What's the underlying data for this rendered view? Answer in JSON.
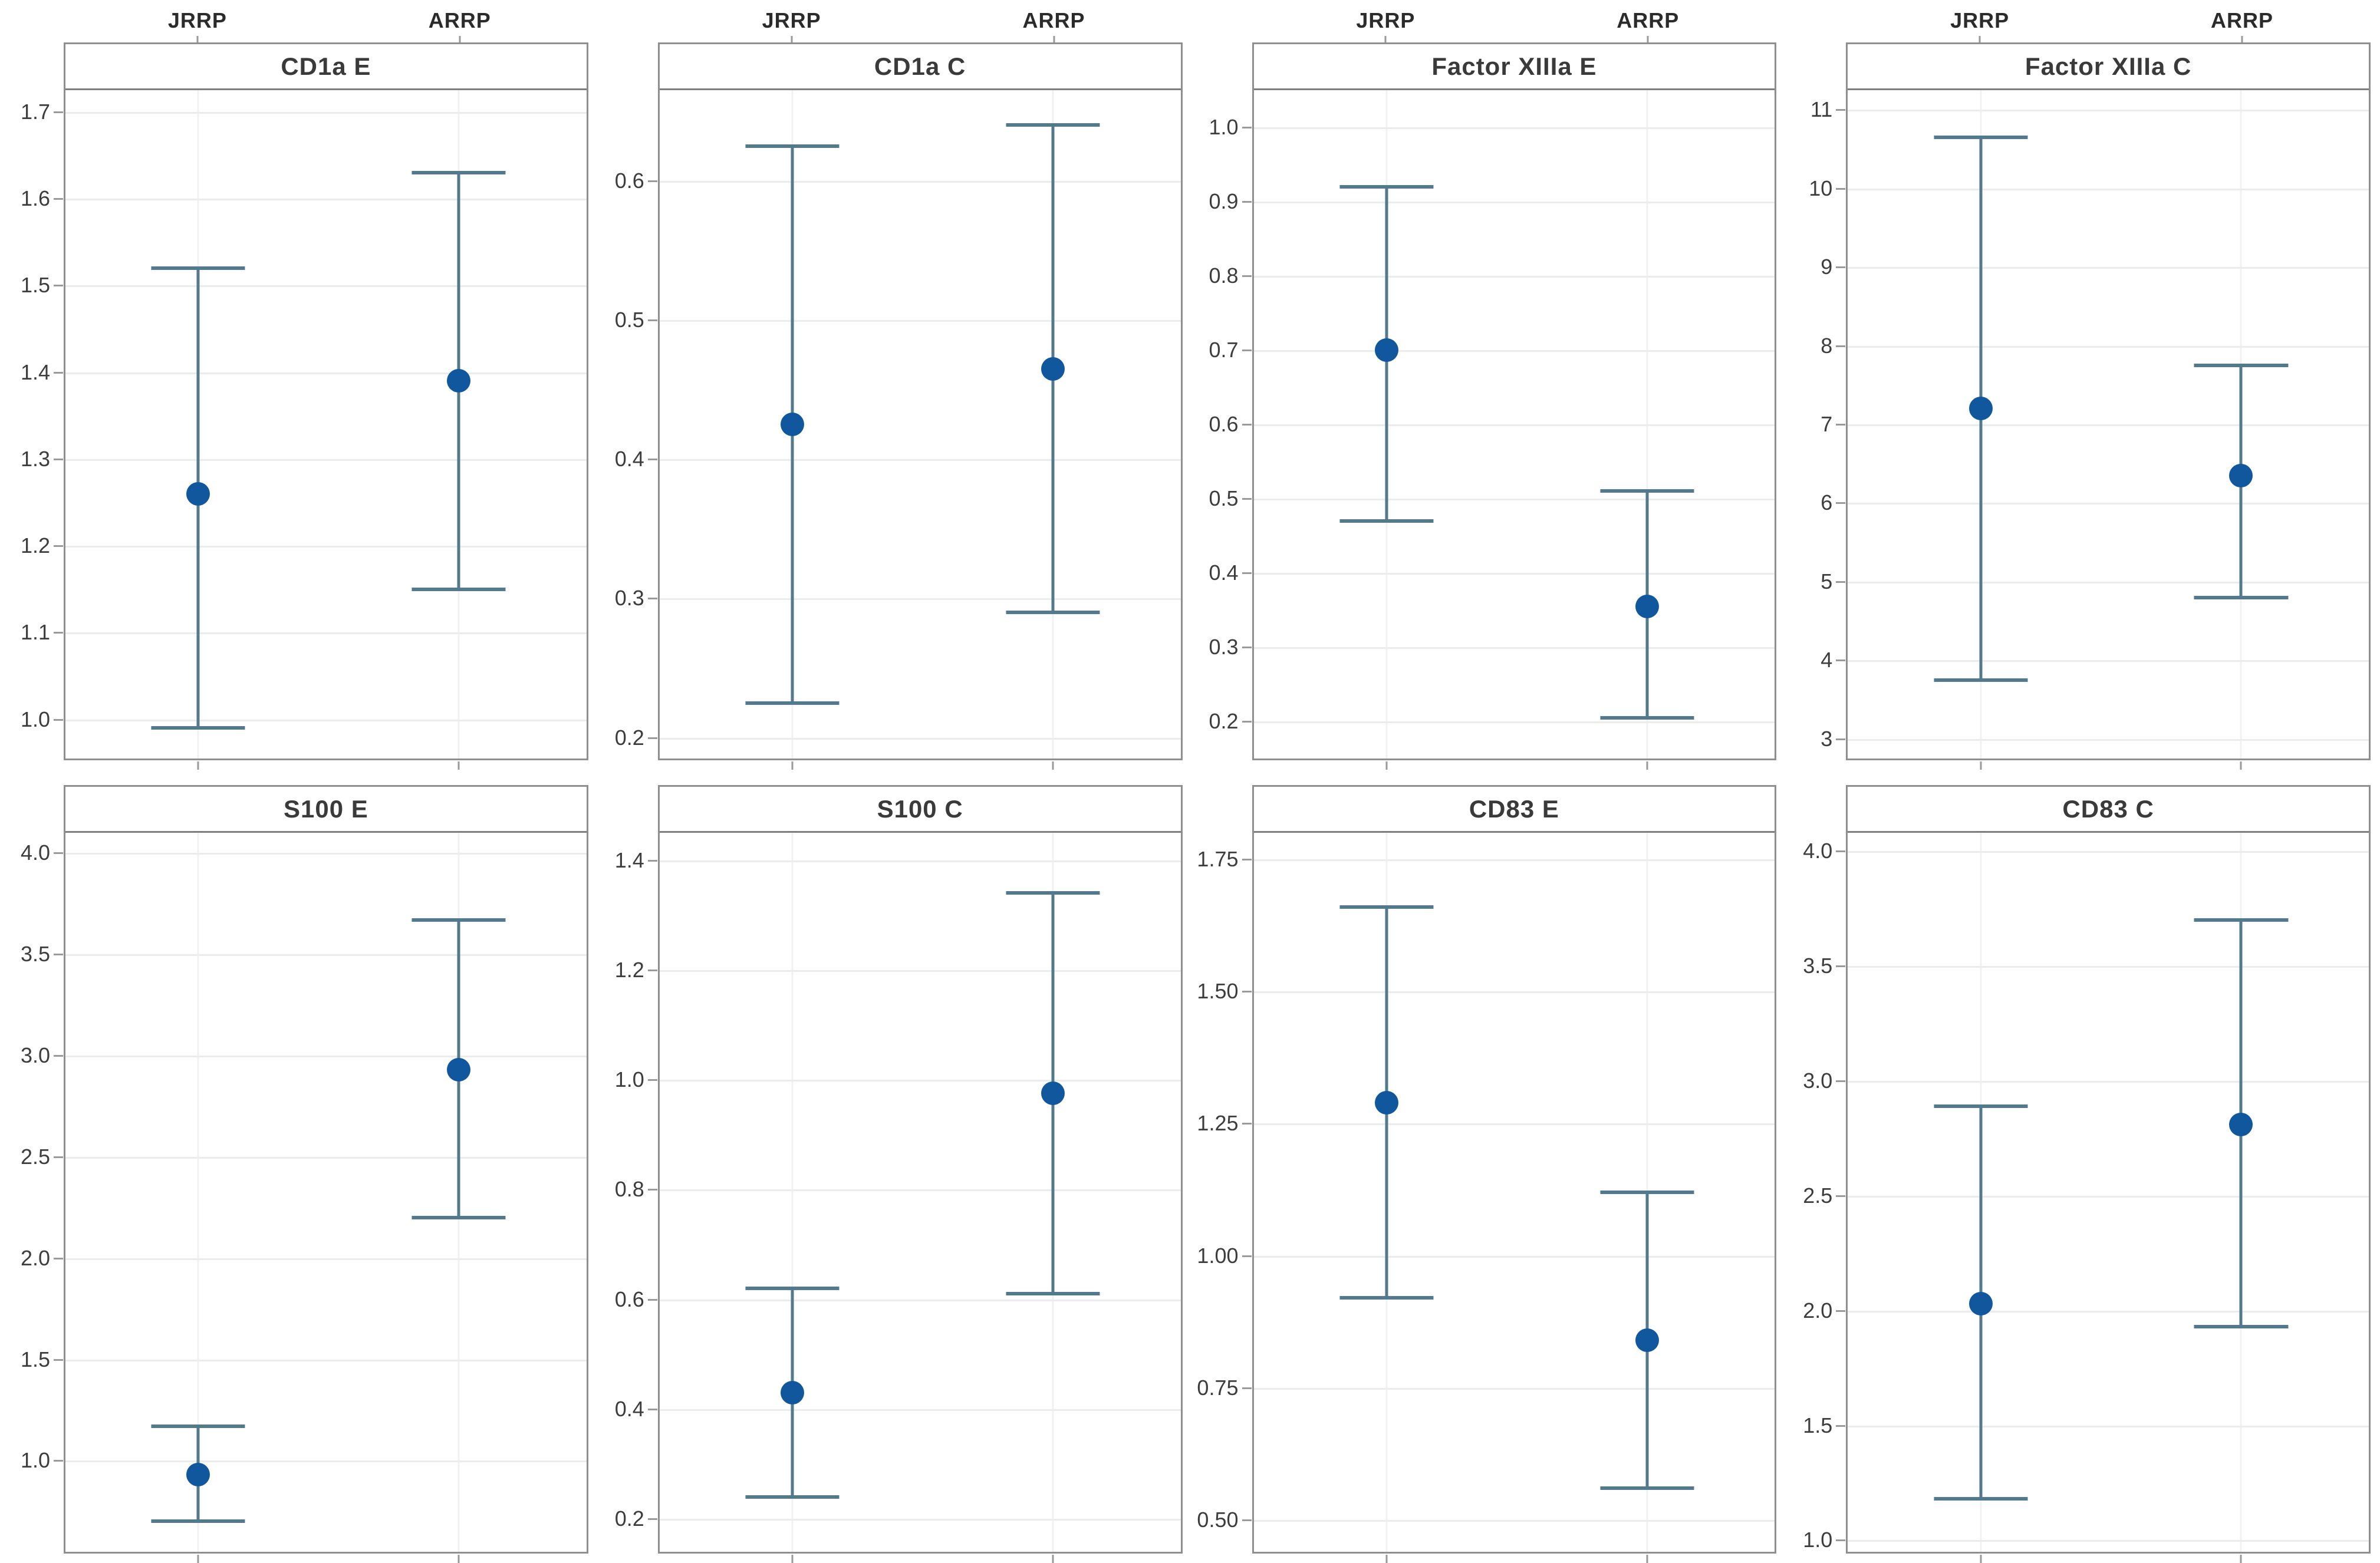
{
  "page": {
    "background": "#ffffff"
  },
  "colors": {
    "marker": "#10579e",
    "interval": "#53798e",
    "grid": "#ececec",
    "vgrid": "#f1f1f1",
    "border": "#8f8f8f",
    "tick": "#9a9a9a",
    "tick_text": "#3d3d3d",
    "header_text": "#2b2b2b",
    "title_text": "#3a3a3a"
  },
  "group_labels": [
    "JRRP",
    "ARRP"
  ],
  "group_positions_pct": [
    25.5,
    75.5
  ],
  "chart_data": [
    {
      "type": "interval",
      "title": "CD1a E",
      "categories": [
        "JRRP",
        "ARRP"
      ],
      "ylim": [
        0.955,
        1.725
      ],
      "grid": true,
      "legend": "none",
      "yticks": [
        {
          "v": 1.7,
          "label": "1.7"
        },
        {
          "v": 1.6,
          "label": "1.6"
        },
        {
          "v": 1.5,
          "label": "1.5"
        },
        {
          "v": 1.4,
          "label": "1.4"
        },
        {
          "v": 1.3,
          "label": "1.3"
        },
        {
          "v": 1.2,
          "label": "1.2"
        },
        {
          "v": 1.1,
          "label": "1.1"
        },
        {
          "v": 1.0,
          "label": "1.0"
        }
      ],
      "series": [
        {
          "name": "JRRP",
          "mean": 1.26,
          "lower": 0.99,
          "upper": 1.52
        },
        {
          "name": "ARRP",
          "mean": 1.39,
          "lower": 1.15,
          "upper": 1.63
        }
      ]
    },
    {
      "type": "interval",
      "title": "CD1a C",
      "categories": [
        "JRRP",
        "ARRP"
      ],
      "ylim": [
        0.185,
        0.665
      ],
      "grid": true,
      "legend": "none",
      "yticks": [
        {
          "v": 0.6,
          "label": "0.6"
        },
        {
          "v": 0.5,
          "label": "0.5"
        },
        {
          "v": 0.4,
          "label": "0.4"
        },
        {
          "v": 0.3,
          "label": "0.3"
        },
        {
          "v": 0.2,
          "label": "0.2"
        }
      ],
      "series": [
        {
          "name": "JRRP",
          "mean": 0.425,
          "lower": 0.225,
          "upper": 0.625
        },
        {
          "name": "ARRP",
          "mean": 0.465,
          "lower": 0.29,
          "upper": 0.64
        }
      ]
    },
    {
      "type": "interval",
      "title": "Factor XIIIa E",
      "categories": [
        "JRRP",
        "ARRP"
      ],
      "ylim": [
        0.15,
        1.05
      ],
      "grid": true,
      "legend": "none",
      "yticks": [
        {
          "v": 1.0,
          "label": "1.0"
        },
        {
          "v": 0.9,
          "label": "0.9"
        },
        {
          "v": 0.8,
          "label": "0.8"
        },
        {
          "v": 0.7,
          "label": "0.7"
        },
        {
          "v": 0.6,
          "label": "0.6"
        },
        {
          "v": 0.5,
          "label": "0.5"
        },
        {
          "v": 0.4,
          "label": "0.4"
        },
        {
          "v": 0.3,
          "label": "0.3"
        },
        {
          "v": 0.2,
          "label": "0.2"
        }
      ],
      "series": [
        {
          "name": "JRRP",
          "mean": 0.7,
          "lower": 0.47,
          "upper": 0.92
        },
        {
          "name": "ARRP",
          "mean": 0.355,
          "lower": 0.205,
          "upper": 0.51
        }
      ]
    },
    {
      "type": "interval",
      "title": "Factor XIIIa C",
      "categories": [
        "JRRP",
        "ARRP"
      ],
      "ylim": [
        2.75,
        11.25
      ],
      "grid": true,
      "legend": "none",
      "yticks": [
        {
          "v": 11,
          "label": "11"
        },
        {
          "v": 10,
          "label": "10"
        },
        {
          "v": 9,
          "label": "9"
        },
        {
          "v": 8,
          "label": "8"
        },
        {
          "v": 7,
          "label": "7"
        },
        {
          "v": 6,
          "label": "6"
        },
        {
          "v": 5,
          "label": "5"
        },
        {
          "v": 4,
          "label": "4"
        },
        {
          "v": 3,
          "label": "3"
        }
      ],
      "series": [
        {
          "name": "JRRP",
          "mean": 7.2,
          "lower": 3.75,
          "upper": 10.65
        },
        {
          "name": "ARRP",
          "mean": 6.35,
          "lower": 4.8,
          "upper": 7.75
        }
      ]
    },
    {
      "type": "interval",
      "title": "S100 E",
      "categories": [
        "JRRP",
        "ARRP"
      ],
      "ylim": [
        0.55,
        4.1
      ],
      "grid": true,
      "legend": "none",
      "yticks": [
        {
          "v": 4.0,
          "label": "4.0"
        },
        {
          "v": 3.5,
          "label": "3.5"
        },
        {
          "v": 3.0,
          "label": "3.0"
        },
        {
          "v": 2.5,
          "label": "2.5"
        },
        {
          "v": 2.0,
          "label": "2.0"
        },
        {
          "v": 1.5,
          "label": "1.5"
        },
        {
          "v": 1.0,
          "label": "1.0"
        }
      ],
      "series": [
        {
          "name": "JRRP",
          "mean": 0.93,
          "lower": 0.7,
          "upper": 1.17
        },
        {
          "name": "ARRP",
          "mean": 2.93,
          "lower": 2.2,
          "upper": 3.67
        }
      ]
    },
    {
      "type": "interval",
      "title": "S100 C",
      "categories": [
        "JRRP",
        "ARRP"
      ],
      "ylim": [
        0.14,
        1.45
      ],
      "grid": true,
      "legend": "none",
      "yticks": [
        {
          "v": 1.4,
          "label": "1.4"
        },
        {
          "v": 1.2,
          "label": "1.2"
        },
        {
          "v": 1.0,
          "label": "1.0"
        },
        {
          "v": 0.8,
          "label": "0.8"
        },
        {
          "v": 0.6,
          "label": "0.6"
        },
        {
          "v": 0.4,
          "label": "0.4"
        },
        {
          "v": 0.2,
          "label": "0.2"
        }
      ],
      "series": [
        {
          "name": "JRRP",
          "mean": 0.43,
          "lower": 0.24,
          "upper": 0.62
        },
        {
          "name": "ARRP",
          "mean": 0.975,
          "lower": 0.61,
          "upper": 1.34
        }
      ]
    },
    {
      "type": "interval",
      "title": "CD83 E",
      "categories": [
        "JRRP",
        "ARRP"
      ],
      "ylim": [
        0.44,
        1.8
      ],
      "grid": true,
      "legend": "none",
      "yticks": [
        {
          "v": 1.75,
          "label": "1.75"
        },
        {
          "v": 1.5,
          "label": "1.50"
        },
        {
          "v": 1.25,
          "label": "1.25"
        },
        {
          "v": 1.0,
          "label": "1.00"
        },
        {
          "v": 0.75,
          "label": "0.75"
        },
        {
          "v": 0.5,
          "label": "0.50"
        }
      ],
      "series": [
        {
          "name": "JRRP",
          "mean": 1.29,
          "lower": 0.92,
          "upper": 1.66
        },
        {
          "name": "ARRP",
          "mean": 0.84,
          "lower": 0.56,
          "upper": 1.12
        }
      ]
    },
    {
      "type": "interval",
      "title": "CD83 C",
      "categories": [
        "JRRP",
        "ARRP"
      ],
      "ylim": [
        0.95,
        4.08
      ],
      "grid": true,
      "legend": "none",
      "yticks": [
        {
          "v": 4.0,
          "label": "4.0"
        },
        {
          "v": 3.5,
          "label": "3.5"
        },
        {
          "v": 3.0,
          "label": "3.0"
        },
        {
          "v": 2.5,
          "label": "2.5"
        },
        {
          "v": 2.0,
          "label": "2.0"
        },
        {
          "v": 1.5,
          "label": "1.5"
        },
        {
          "v": 1.0,
          "label": "1.0"
        }
      ],
      "series": [
        {
          "name": "JRRP",
          "mean": 2.03,
          "lower": 1.18,
          "upper": 2.89
        },
        {
          "name": "ARRP",
          "mean": 2.81,
          "lower": 1.93,
          "upper": 3.7
        }
      ]
    }
  ]
}
